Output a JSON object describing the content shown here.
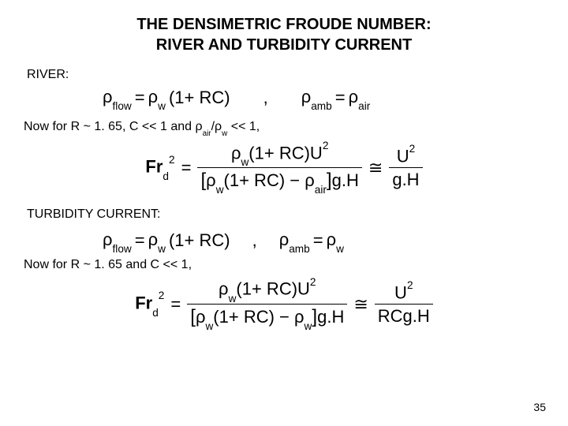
{
  "title_line1": "THE DENSIMETRIC FROUDE NUMBER:",
  "title_line2": "RIVER AND TURBIDITY CURRENT",
  "river_label": "RIVER:",
  "eq1_lhs1": "ρ",
  "eq1_lhs1_sub": "flow",
  "eq": " = ",
  "eq1_rhs1a": "ρ",
  "eq1_rhs1a_sub": "w",
  "eq1_rhs1b": "(1+ RC)",
  "comma_gap": ",",
  "eq1_lhs2": "ρ",
  "eq1_lhs2_sub": "amb",
  "eq1_rhs2": "ρ",
  "eq1_rhs2_sub": "air",
  "cond1_a": "Now for R ~ 1. 65, C << 1 and ",
  "cond1_r1": "ρ",
  "cond1_r1_sub": "air",
  "cond1_slash": "/",
  "cond1_r2": "ρ",
  "cond1_r2_sub": "w",
  "cond1_b": " << 1,",
  "fr_lhs_base": "Fr",
  "fr_lhs_sub": "d",
  "fr_lhs_sup": "2",
  "fr_num_a": "ρ",
  "fr_num_a_sub": "w",
  "fr_num_b": "(1+ RC)U",
  "fr_num_sup": "2",
  "fr_den_open": "[",
  "fr_den_a": "ρ",
  "fr_den_a_sub": "w",
  "fr_den_b": "(1+ RC) − ",
  "fr_den_c": "ρ",
  "fr_den_c_sub": "air",
  "fr_den_close": "]",
  "fr_den_end": "g.H",
  "approx": "≅",
  "fr_simple_num": "U",
  "fr_simple_num_sup": "2",
  "fr_simple_den": "g.H",
  "turb_label": "TURBIDITY CURRENT:",
  "eq2_rhs2": "ρ",
  "eq2_rhs2_sub": "w",
  "cond2": "Now for R ~ 1. 65 and C << 1,",
  "fr2_den_c_sub": "w",
  "fr2_simple_den": "RCg.H",
  "page_num": "35"
}
